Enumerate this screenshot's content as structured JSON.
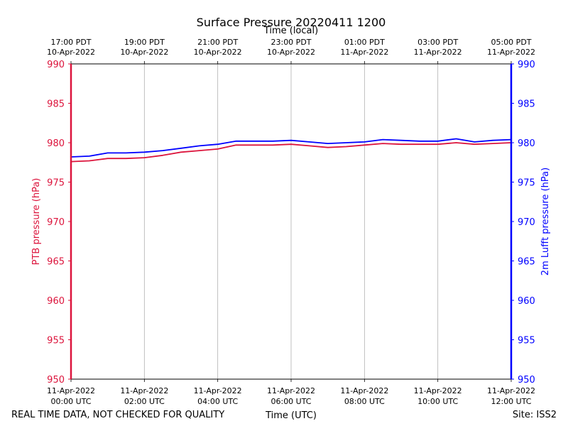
{
  "chart_data": {
    "type": "line",
    "title": "Surface Pressure 20220411 1200",
    "xlabel_bottom": "Time (UTC)",
    "xlabel_top": "Time (local)",
    "ylabel_left": "PTB pressure (hPa)",
    "ylabel_right": "2m Lufft pressure (hPa)",
    "ylim": [
      950,
      990
    ],
    "y_ticks": [
      950,
      955,
      960,
      965,
      970,
      975,
      980,
      985,
      990
    ],
    "xlim_hours_utc": [
      0,
      12
    ],
    "grid": "vertical",
    "x_ticks_bottom": [
      {
        "hour": 0,
        "l1": "11-Apr-2022",
        "l2": "00:00 UTC"
      },
      {
        "hour": 2,
        "l1": "11-Apr-2022",
        "l2": "02:00 UTC"
      },
      {
        "hour": 4,
        "l1": "11-Apr-2022",
        "l2": "04:00 UTC"
      },
      {
        "hour": 6,
        "l1": "11-Apr-2022",
        "l2": "06:00 UTC"
      },
      {
        "hour": 8,
        "l1": "11-Apr-2022",
        "l2": "08:00 UTC"
      },
      {
        "hour": 10,
        "l1": "11-Apr-2022",
        "l2": "10:00 UTC"
      },
      {
        "hour": 12,
        "l1": "11-Apr-2022",
        "l2": "12:00 UTC"
      }
    ],
    "x_ticks_top": [
      {
        "hour": 0,
        "l1": "17:00 PDT",
        "l2": "10-Apr-2022"
      },
      {
        "hour": 2,
        "l1": "19:00 PDT",
        "l2": "10-Apr-2022"
      },
      {
        "hour": 4,
        "l1": "21:00 PDT",
        "l2": "10-Apr-2022"
      },
      {
        "hour": 6,
        "l1": "23:00 PDT",
        "l2": "10-Apr-2022"
      },
      {
        "hour": 8,
        "l1": "01:00 PDT",
        "l2": "11-Apr-2022"
      },
      {
        "hour": 10,
        "l1": "03:00 PDT",
        "l2": "11-Apr-2022"
      },
      {
        "hour": 12,
        "l1": "05:00 PDT",
        "l2": "11-Apr-2022"
      }
    ],
    "series": [
      {
        "name": "PTB pressure (hPa)",
        "color": "#dc143c",
        "axis": "left",
        "x_hours": [
          0,
          0.5,
          1,
          1.5,
          2,
          2.5,
          3,
          3.5,
          4,
          4.5,
          5,
          5.5,
          6,
          6.5,
          7,
          7.5,
          8,
          8.5,
          9,
          9.5,
          10,
          10.5,
          11,
          11.5,
          12
        ],
        "values": [
          977.6,
          977.7,
          978.0,
          978.0,
          978.1,
          978.4,
          978.8,
          979.0,
          979.2,
          979.7,
          979.7,
          979.7,
          979.8,
          979.6,
          979.4,
          979.5,
          979.7,
          979.9,
          979.8,
          979.8,
          979.8,
          980.0,
          979.8,
          979.9,
          980.0
        ]
      },
      {
        "name": "2m Lufft pressure (hPa)",
        "color": "#0000ff",
        "axis": "right",
        "x_hours": [
          0,
          0.5,
          1,
          1.5,
          2,
          2.5,
          3,
          3.5,
          4,
          4.5,
          5,
          5.5,
          6,
          6.5,
          7,
          7.5,
          8,
          8.5,
          9,
          9.5,
          10,
          10.5,
          11,
          11.5,
          12
        ],
        "values": [
          978.2,
          978.3,
          978.7,
          978.7,
          978.8,
          979.0,
          979.3,
          979.6,
          979.8,
          980.2,
          980.2,
          980.2,
          980.3,
          980.1,
          979.9,
          980.0,
          980.1,
          980.4,
          980.3,
          980.2,
          980.2,
          980.5,
          980.1,
          980.3,
          980.4
        ]
      }
    ]
  },
  "footer": {
    "left": "REAL TIME DATA, NOT CHECKED FOR QUALITY",
    "right": "Site: ISS2"
  }
}
